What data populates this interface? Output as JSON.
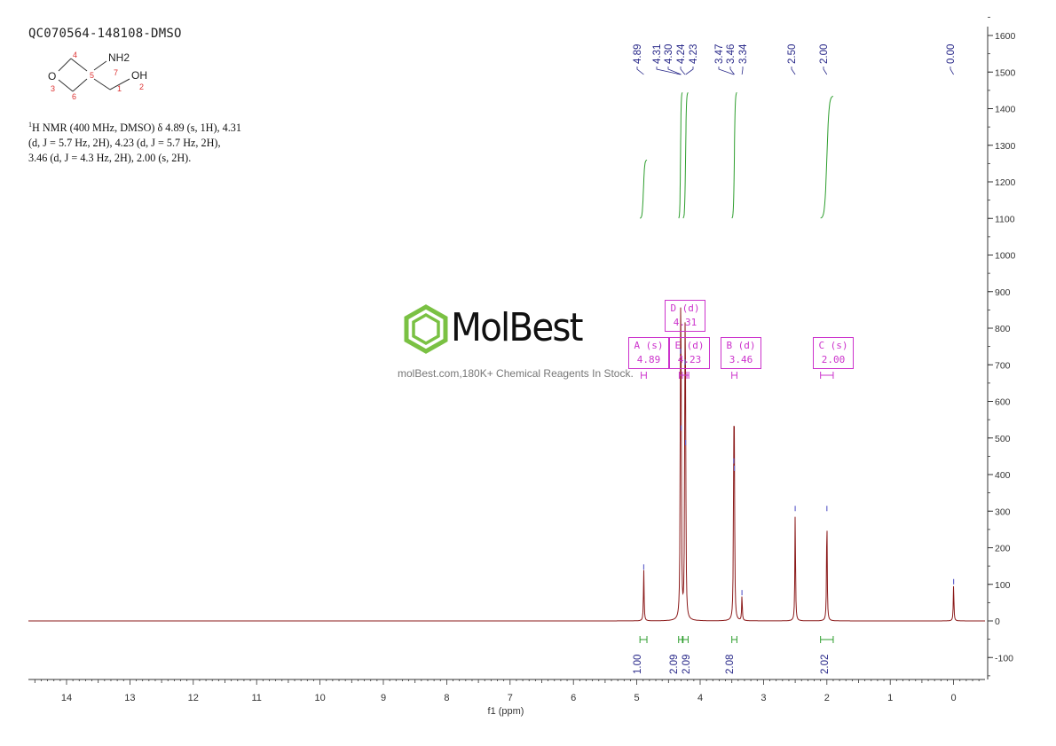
{
  "sample_id": "QC070564-148108-DMSO",
  "molecule": {
    "labels": {
      "n1": "1",
      "n2": "2",
      "n3": "3",
      "n4": "4",
      "n5": "5",
      "n6": "6",
      "n7": "7"
    },
    "atoms": {
      "o_ring": "O",
      "nh2": "NH2",
      "oh": "OH"
    }
  },
  "nmr_text": {
    "isotope": "1",
    "body": "H NMR (400 MHz, DMSO) δ 4.89 (s, 1H), 4.31 (d, J = 5.7 Hz, 2H), 4.23 (d, J = 5.7 Hz, 2H), 3.46 (d, J = 4.3 Hz, 2H), 2.00 (s, 2H)."
  },
  "watermark": {
    "brand": "MolBest",
    "tagline": "molBest.com,180K+ Chemical Reagents In Stock."
  },
  "peak_labels": [
    {
      "letter_mult": "A (s)",
      "shift": "4.89"
    },
    {
      "letter_mult": "D (d)",
      "shift": "4.31"
    },
    {
      "letter_mult": "E (d)",
      "shift": "4.23"
    },
    {
      "letter_mult": "B (d)",
      "shift": "3.46"
    },
    {
      "letter_mult": "C (s)",
      "shift": "2.00"
    }
  ],
  "colors": {
    "spectrum": "#8b1a1a",
    "integral": "#2e9e2e",
    "peak_label": "#2a2a8a",
    "multiplet_box": "#cc33cc",
    "axis": "#333333",
    "logo_green": "#7ac143"
  },
  "chart_data": {
    "type": "line",
    "title": "",
    "xlabel": "f1 (ppm)",
    "ylabel": "",
    "xlim": [
      14.6,
      -0.5
    ],
    "ylim": [
      -150,
      1650
    ],
    "x_ticks": [
      14,
      13,
      12,
      11,
      10,
      9,
      8,
      7,
      6,
      5,
      4,
      3,
      2,
      1,
      0
    ],
    "y_ticks": [
      -100,
      0,
      100,
      200,
      300,
      400,
      500,
      600,
      700,
      800,
      900,
      1000,
      1100,
      1200,
      1300,
      1400,
      1500,
      1600
    ],
    "peaks": [
      {
        "ppm": 4.89,
        "height": 140
      },
      {
        "ppm": 4.31,
        "height": 730
      },
      {
        "ppm": 4.3,
        "height": 520
      },
      {
        "ppm": 4.24,
        "height": 700
      },
      {
        "ppm": 4.23,
        "height": 480
      },
      {
        "ppm": 3.47,
        "height": 430
      },
      {
        "ppm": 3.46,
        "height": 410
      },
      {
        "ppm": 3.34,
        "height": 70
      },
      {
        "ppm": 2.5,
        "height": 300
      },
      {
        "ppm": 2.0,
        "height": 300
      },
      {
        "ppm": 0.0,
        "height": 100
      }
    ],
    "peak_picks": [
      "4.89",
      "4.31",
      "4.30",
      "4.24",
      "4.23",
      "3.47",
      "3.46",
      "3.34",
      "2.50",
      "2.00",
      "0.00"
    ],
    "integrals": [
      {
        "from": 4.95,
        "to": 4.84,
        "value": "1.00",
        "curve_start": 1100,
        "curve_end": 1260
      },
      {
        "from": 4.34,
        "to": 4.28,
        "value": "2.09",
        "curve_start": 1100,
        "curve_end": 1445
      },
      {
        "from": 4.27,
        "to": 4.19,
        "value": "2.09",
        "curve_start": 1100,
        "curve_end": 1445
      },
      {
        "from": 3.5,
        "to": 3.42,
        "value": "2.08",
        "curve_start": 1100,
        "curve_end": 1445
      },
      {
        "from": 2.1,
        "to": 1.9,
        "value": "2.02",
        "curve_start": 1100,
        "curve_end": 1435
      }
    ]
  }
}
